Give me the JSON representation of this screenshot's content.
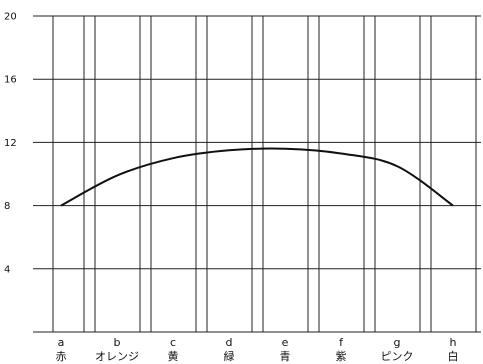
{
  "chart_data": {
    "type": "line",
    "title": "",
    "xlabel": "",
    "ylabel": "",
    "ylim": [
      0,
      20
    ],
    "yticks": [
      4,
      8,
      12,
      16,
      20
    ],
    "grid": true,
    "categories": [
      {
        "letter": "a",
        "name": "赤"
      },
      {
        "letter": "b",
        "name": "オレンジ"
      },
      {
        "letter": "c",
        "name": "黄"
      },
      {
        "letter": "d",
        "name": "緑"
      },
      {
        "letter": "e",
        "name": "青"
      },
      {
        "letter": "f",
        "name": "紫"
      },
      {
        "letter": "g",
        "name": "ピンク"
      },
      {
        "letter": "h",
        "name": "白"
      }
    ],
    "series": [
      {
        "x": [
          0,
          1,
          2,
          3,
          4,
          5,
          6,
          7
        ],
        "values": [
          8.0,
          9.9,
          11.0,
          11.5,
          11.6,
          11.3,
          10.5,
          8.0
        ],
        "color": "#111111"
      }
    ]
  }
}
